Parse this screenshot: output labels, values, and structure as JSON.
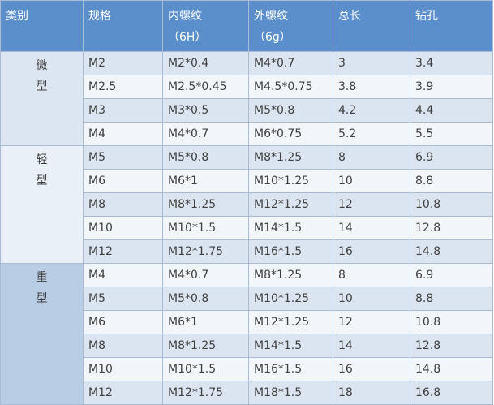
{
  "header": [
    [
      "类别"
    ],
    [
      "规格"
    ],
    [
      "内螺纹",
      "（6H）"
    ],
    [
      "外螺纹",
      "（6g）"
    ],
    [
      "总长"
    ],
    [
      "钻孔"
    ]
  ],
  "groups": [
    {
      "name": [
        "微",
        "型"
      ],
      "rows": [
        [
          "M2",
          "M2*0.4",
          "M4*0.7",
          "3",
          "3.4"
        ],
        [
          "M2.5",
          "M2.5*0.45",
          "M4.5*0.75",
          "3.8",
          "3.9"
        ],
        [
          "M3",
          "M3*0.5",
          "M5*0.8",
          "4.2",
          "4.4"
        ],
        [
          "M4",
          "M4*0.7",
          "M6*0.75",
          "5.2",
          "5.5"
        ]
      ]
    },
    {
      "name": [
        "轻",
        "型"
      ],
      "rows": [
        [
          "M5",
          "M5*0.8",
          "M8*1.25",
          "8",
          "6.9"
        ],
        [
          "M6",
          "M6*1",
          "M10*1.25",
          "10",
          "8.8"
        ],
        [
          "M8",
          "M8*1.25",
          "M12*1.25",
          "12",
          "10.8"
        ],
        [
          "M10",
          "M10*1.5",
          "M14*1.5",
          "14",
          "12.8"
        ],
        [
          "M12",
          "M12*1.75",
          "M16*1.5",
          "16",
          "14.8"
        ]
      ]
    },
    {
      "name": [
        "重",
        "型"
      ],
      "rows": [
        [
          "M4",
          "M4*0.7",
          "M8*1.25",
          "8",
          "6.9"
        ],
        [
          "M5",
          "M5*0.8",
          "M10*1.25",
          "10",
          "8.8"
        ],
        [
          "M6",
          "M6*1",
          "M12*1.25",
          "12",
          "10.8"
        ],
        [
          "M8",
          "M8*1.25",
          "M14*1.5",
          "14",
          "12.8"
        ],
        [
          "M10",
          "M10*1.5",
          "M16*1.5",
          "16",
          "14.8"
        ],
        [
          "M12",
          "M12*1.75",
          "M18*1.5",
          "18",
          "16.8"
        ]
      ]
    }
  ]
}
